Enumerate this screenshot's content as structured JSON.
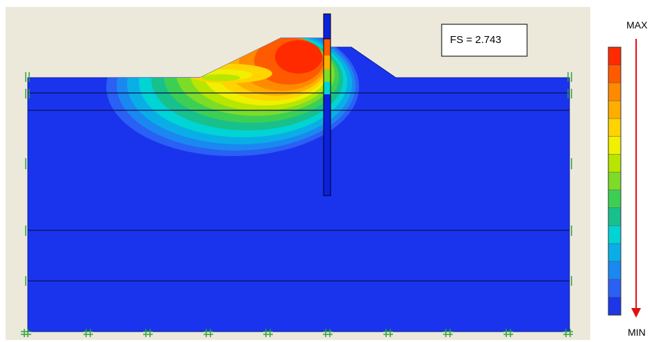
{
  "result": {
    "factor_of_safety_label": "FS = 2.743"
  },
  "legend": {
    "max_label": "MAX",
    "min_label": "MIN",
    "arrow_color": "#e01010",
    "color_scale_top_to_bottom": [
      "#ff2a00",
      "#ff5a00",
      "#ff8a00",
      "#ffae00",
      "#ffd400",
      "#f0f000",
      "#b8e600",
      "#7cdc28",
      "#3ccf54",
      "#18c08c",
      "#00d4d4",
      "#0aaee6",
      "#1a88f0",
      "#2a60f4",
      "#1c36e8"
    ]
  },
  "model": {
    "background_color": "#ece9db",
    "soil_color": "#1a34ee",
    "pile_color": "#0a22dd",
    "boundary_marker_color": "#2ea03a",
    "soil_layer_count": 4,
    "failure_zone": "shear strain concentration beneath left embankment slope"
  }
}
